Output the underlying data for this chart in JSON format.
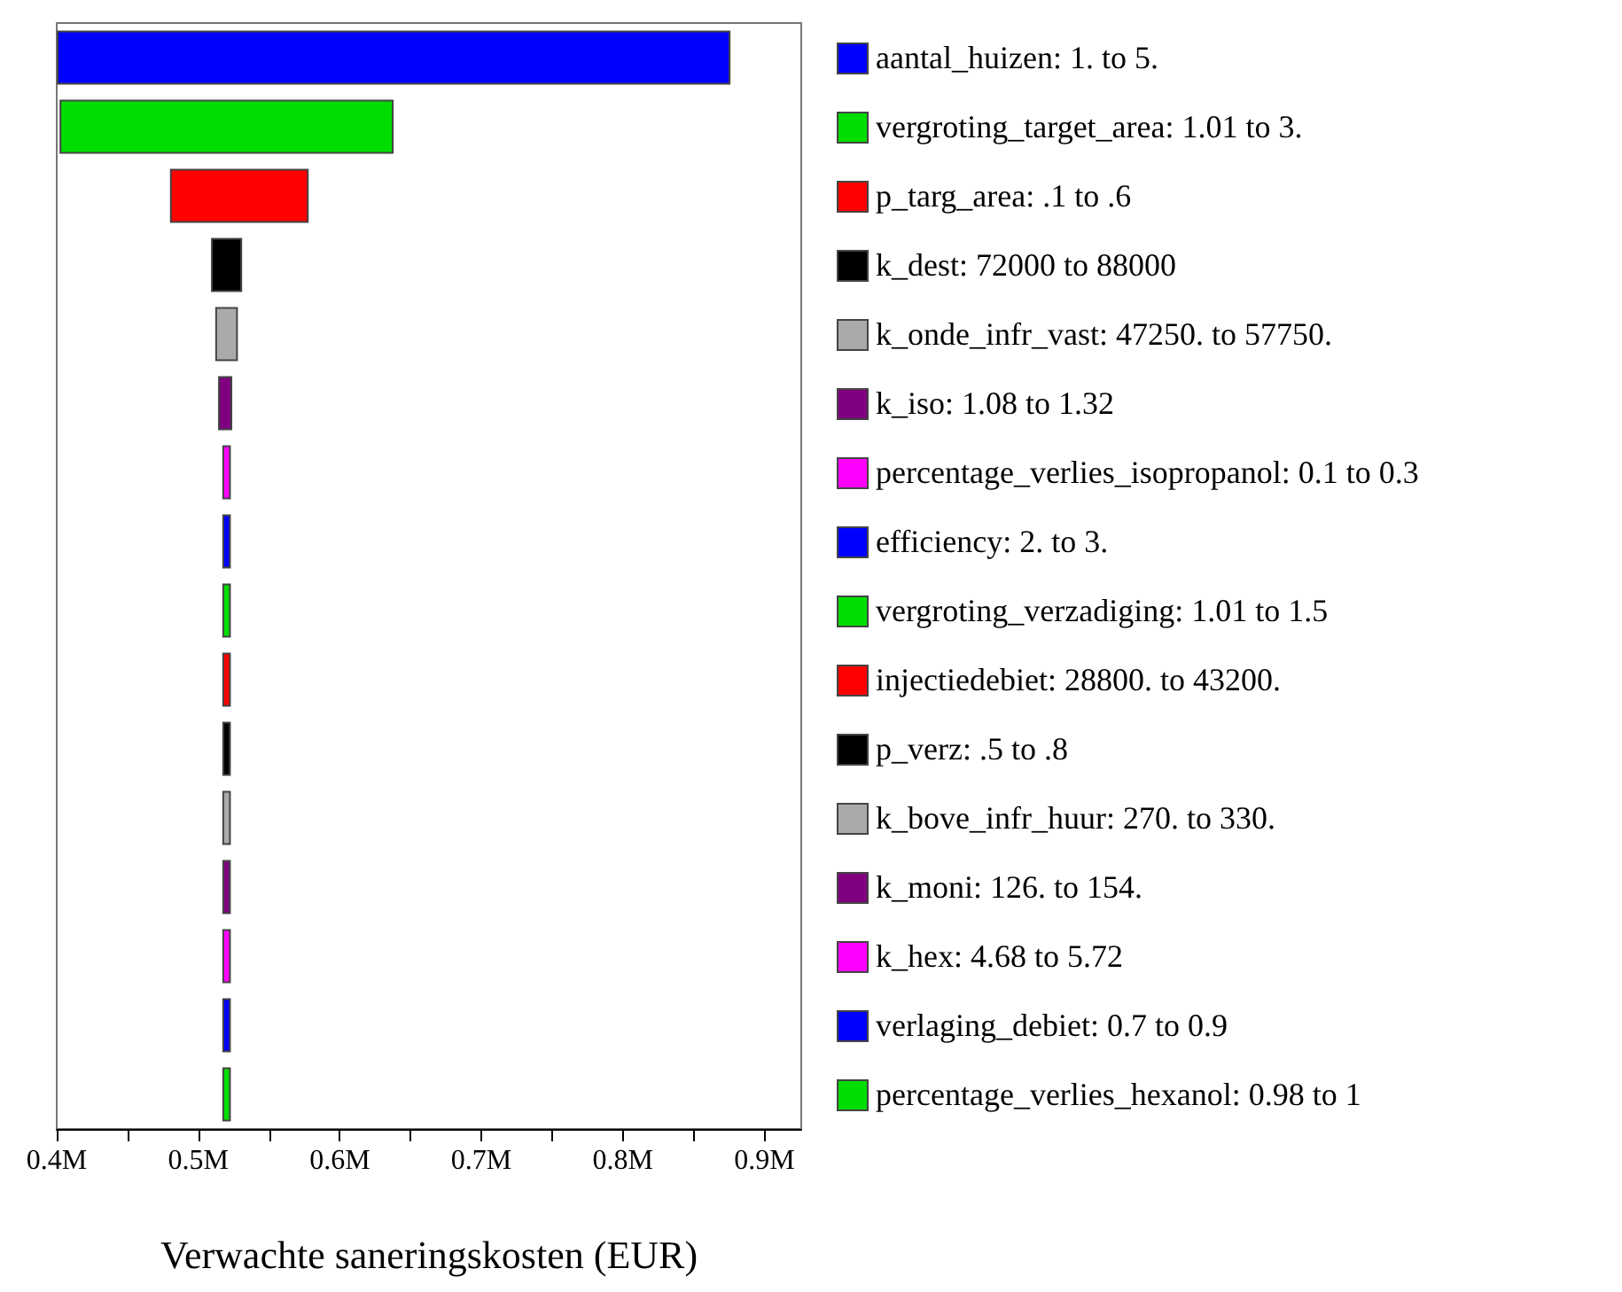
{
  "chart_data": {
    "type": "bar",
    "orientation": "horizontal",
    "xlabel": "Verwachte saneringskosten (EUR)",
    "categories": [
      "aantal_huizen: 1. to 5.",
      "vergroting_target_area: 1.01 to 3.",
      "p_targ_area: .1 to .6",
      "k_dest: 72000 to 88000",
      "k_onde_infr_vast: 47250. to 57750.",
      "k_iso: 1.08 to 1.32",
      "percentage_verlies_isopropanol: 0.1 to 0.3",
      "efficiency: 2. to 3.",
      "vergroting_verzadiging: 1.01 to 1.5",
      "injectiedebiet: 28800. to 43200.",
      "p_verz: .5 to .8",
      "k_bove_infr_huur: 270. to 330.",
      "k_moni: 126. to 154.",
      "k_hex: 4.68 to 5.72",
      "verlaging_debiet: 0.7 to 0.9",
      "percentage_verlies_hexanol: 0.98 to 1"
    ],
    "base": [
      400000,
      402000,
      480000,
      509000,
      512000,
      514000,
      517000,
      517000,
      517000,
      517000,
      517000,
      517000,
      517000,
      517000,
      517000,
      517000
    ],
    "values": [
      476000,
      236000,
      98000,
      22000,
      16000,
      10000,
      6000,
      6000,
      6000,
      6000,
      6000,
      6000,
      6000,
      6000,
      6000,
      6000
    ],
    "colors": [
      "#0000ff",
      "#00dd00",
      "#ff0000",
      "#000000",
      "#aaaaaa",
      "#800080",
      "#ff00ff",
      "#0000ff",
      "#00dd00",
      "#ff0000",
      "#000000",
      "#aaaaaa",
      "#800080",
      "#ff00ff",
      "#0000ff",
      "#00dd00"
    ],
    "xlim": [
      400000,
      926000
    ],
    "xticks": [
      {
        "value": 400000,
        "label": "0.4M"
      },
      {
        "value": 450000,
        "label": null
      },
      {
        "value": 500000,
        "label": "0.5M"
      },
      {
        "value": 550000,
        "label": null
      },
      {
        "value": 600000,
        "label": "0.6M"
      },
      {
        "value": 650000,
        "label": null
      },
      {
        "value": 700000,
        "label": "0.7M"
      },
      {
        "value": 750000,
        "label": null
      },
      {
        "value": 800000,
        "label": "0.8M"
      },
      {
        "value": 850000,
        "label": null
      },
      {
        "value": 900000,
        "label": "0.9M"
      }
    ],
    "grid": false
  }
}
